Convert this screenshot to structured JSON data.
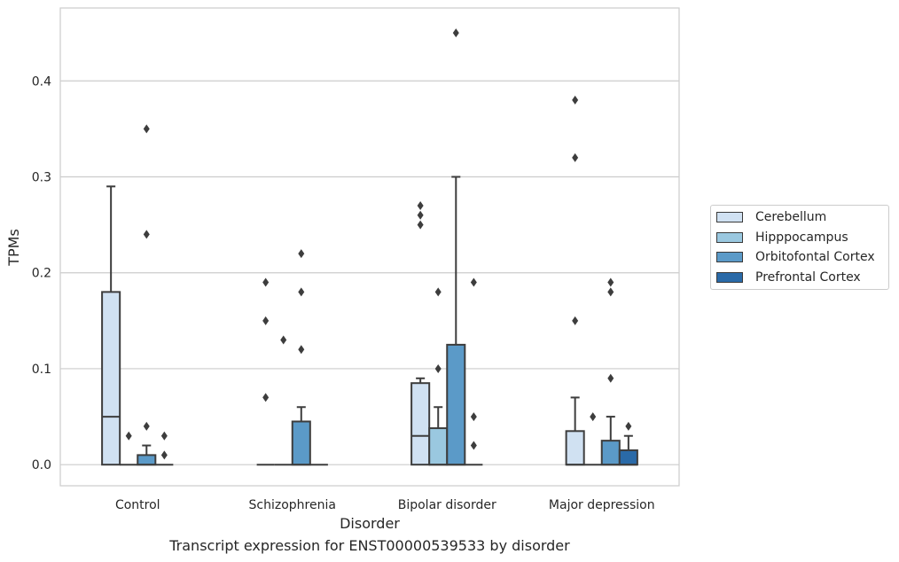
{
  "chart_data": {
    "type": "box",
    "title": "",
    "caption": "Transcript expression for ENST00000539533 by disorder",
    "xlabel": "Disorder",
    "ylabel": "TPMs",
    "ylim": [
      -0.022,
      0.476
    ],
    "yticks": [
      0.0,
      0.1,
      0.2,
      0.3,
      0.4
    ],
    "ytick_labels": [
      "0.0",
      "0.1",
      "0.2",
      "0.3",
      "0.4"
    ],
    "grid": "horizontal",
    "legend_position": "right",
    "categories": [
      "Control",
      "Schizophrenia",
      "Bipolar disorder",
      "Major depression"
    ],
    "series": [
      {
        "name": "Cerebellum",
        "color": "#d0e1f2",
        "boxes": [
          {
            "min": 0,
            "q1": 0,
            "median": 0.05,
            "q3": 0.18,
            "max": 0.29,
            "outliers": []
          },
          {
            "min": 0,
            "q1": 0,
            "median": 0,
            "q3": 0,
            "max": 0,
            "outliers": [
              0.19,
              0.15,
              0.07
            ]
          },
          {
            "min": 0,
            "q1": 0,
            "median": 0.03,
            "q3": 0.085,
            "max": 0.09,
            "outliers": [
              0.27,
              0.26,
              0.25
            ]
          },
          {
            "min": 0,
            "q1": 0,
            "median": 0,
            "q3": 0.035,
            "max": 0.07,
            "outliers": [
              0.38,
              0.32,
              0.15
            ]
          }
        ]
      },
      {
        "name": "Hipppocampus",
        "color": "#9ac8e0",
        "boxes": [
          {
            "min": 0,
            "q1": 0,
            "median": 0,
            "q3": 0,
            "max": 0,
            "outliers": [
              0.03
            ]
          },
          {
            "min": 0,
            "q1": 0,
            "median": 0,
            "q3": 0,
            "max": 0,
            "outliers": [
              0.13
            ]
          },
          {
            "min": 0,
            "q1": 0,
            "median": 0,
            "q3": 0.038,
            "max": 0.06,
            "outliers": [
              0.18,
              0.1
            ]
          },
          {
            "min": 0,
            "q1": 0,
            "median": 0,
            "q3": 0,
            "max": 0,
            "outliers": [
              0.05
            ]
          }
        ]
      },
      {
        "name": "Orbitofontal Cortex",
        "color": "#5b9ac8",
        "boxes": [
          {
            "min": 0,
            "q1": 0,
            "median": 0,
            "q3": 0.01,
            "max": 0.02,
            "outliers": [
              0.35,
              0.24,
              0.04
            ]
          },
          {
            "min": 0,
            "q1": 0,
            "median": 0,
            "q3": 0.045,
            "max": 0.06,
            "outliers": [
              0.22,
              0.18,
              0.12
            ]
          },
          {
            "min": 0,
            "q1": 0,
            "median": 0,
            "q3": 0.125,
            "max": 0.3,
            "outliers": [
              0.45
            ]
          },
          {
            "min": 0,
            "q1": 0,
            "median": 0,
            "q3": 0.025,
            "max": 0.05,
            "outliers": [
              0.19,
              0.18,
              0.09
            ]
          }
        ]
      },
      {
        "name": "Prefrontal Cortex",
        "color": "#2a6aa8",
        "boxes": [
          {
            "min": 0,
            "q1": 0,
            "median": 0,
            "q3": 0,
            "max": 0,
            "outliers": [
              0.03,
              0.01
            ]
          },
          {
            "min": 0,
            "q1": 0,
            "median": 0,
            "q3": 0,
            "max": 0,
            "outliers": []
          },
          {
            "min": 0,
            "q1": 0,
            "median": 0,
            "q3": 0,
            "max": 0,
            "outliers": [
              0.19,
              0.05,
              0.02
            ]
          },
          {
            "min": 0,
            "q1": 0,
            "median": 0,
            "q3": 0.015,
            "max": 0.03,
            "outliers": [
              0.04
            ]
          }
        ]
      }
    ]
  }
}
